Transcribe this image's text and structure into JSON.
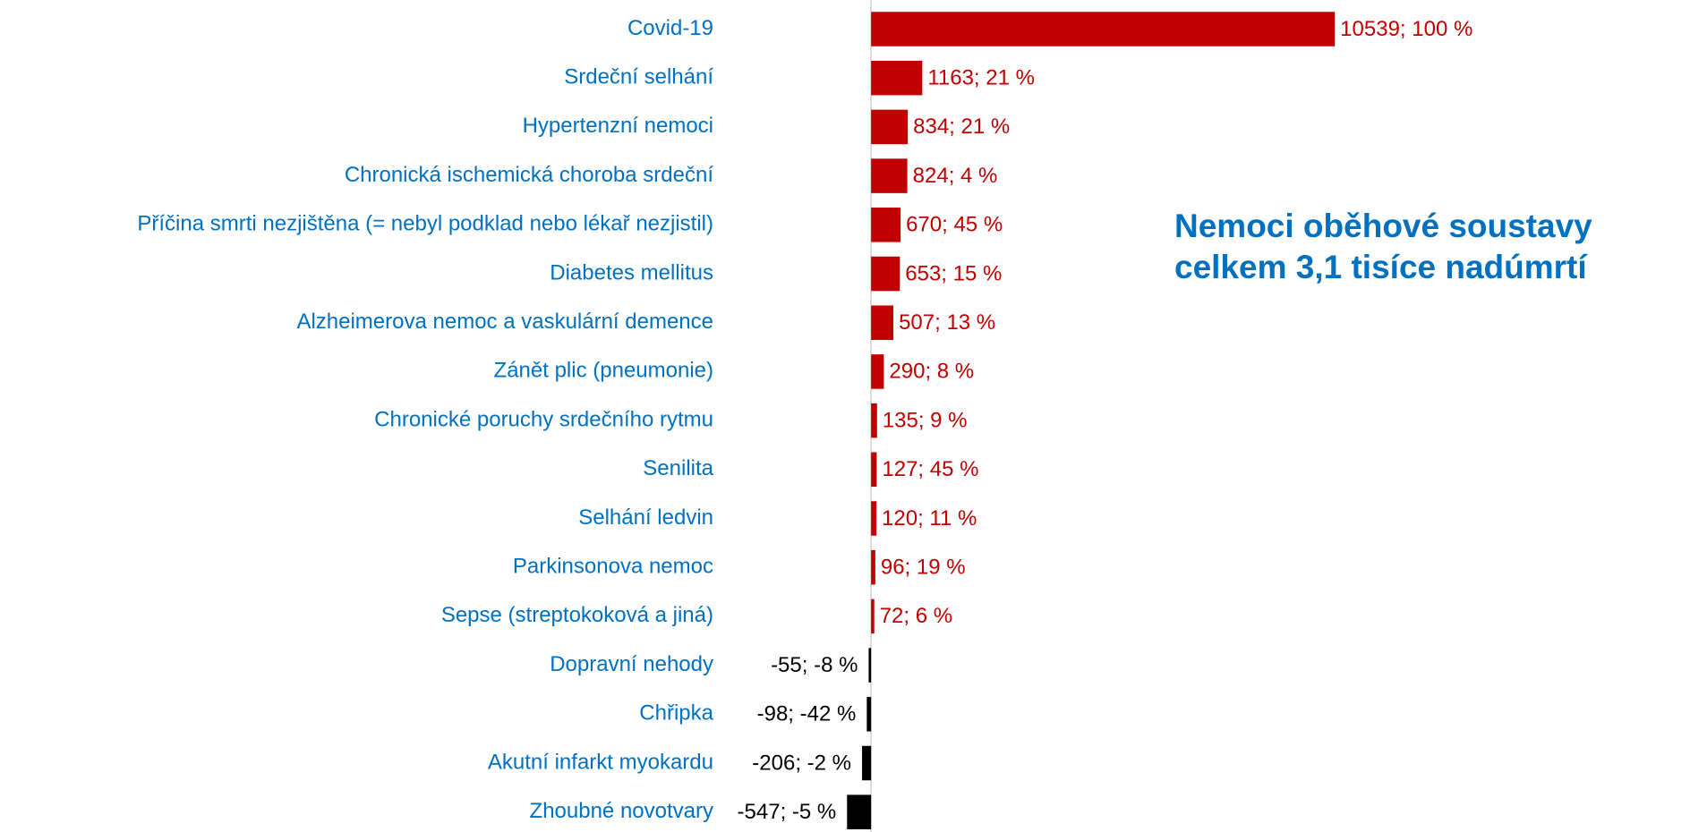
{
  "chart_data": {
    "type": "barh",
    "categories": [
      "Covid-19",
      "Srdeční selhání",
      "Hypertenzní nemoci",
      "Chronická ischemická choroba srdeční",
      "Příčina smrti nezjištěna (= nebyl podklad nebo lékař nezjistil)",
      "Diabetes mellitus",
      "Alzheimerova nemoc a vaskulární demence",
      "Zánět plic (pneumonie)",
      "Chronické poruchy srdečního rytmu",
      "Senilita",
      "Selhání ledvin",
      "Parkinsonova nemoc",
      "Sepse (streptokoková a jiná)",
      "Dopravní nehody",
      "Chřipka",
      "Akutní infarkt myokardu",
      "Zhoubné novotvary"
    ],
    "values": [
      10539,
      1163,
      834,
      824,
      670,
      653,
      507,
      290,
      135,
      127,
      120,
      96,
      72,
      -55,
      -98,
      -206,
      -547
    ],
    "value_labels": [
      "10539; 100 %",
      "1163; 21 %",
      "834; 21 %",
      "824; 4 %",
      "670; 45 %",
      "653; 15 %",
      "507; 13 %",
      "290; 8 %",
      "135; 9 %",
      "127; 45 %",
      "120; 11 %",
      "96; 19 %",
      "72; 6 %",
      "-55; -8 %",
      "-98; -42 %",
      "-206; -2 %",
      "-547; -5 %"
    ],
    "color": "#c00000",
    "negative_color": "#000000",
    "xlim": [
      -1000,
      12000
    ],
    "annotation": [
      "Nemoci oběhové soustavy",
      "celkem 3,1 tisíce nadúmrtí"
    ]
  }
}
